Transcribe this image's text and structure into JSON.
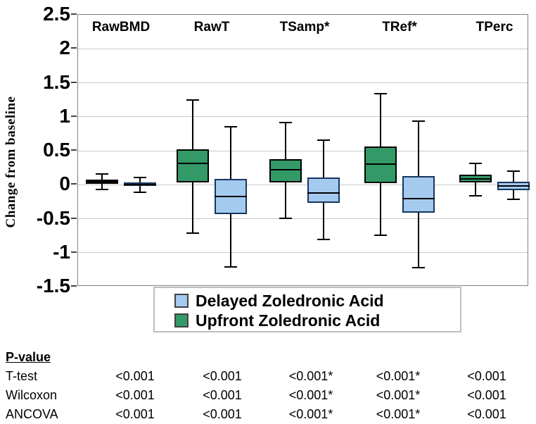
{
  "y_axis": {
    "title": "Change from baseline",
    "tick_labels": [
      "2.5",
      "2",
      "1.5",
      "1",
      "0.5",
      "0",
      "-0.5",
      "-1",
      "-1.5"
    ]
  },
  "legend": {
    "items": [
      {
        "label": "Delayed Zoledronic Acid",
        "color": "#A5CAF0",
        "border": "#17365D"
      },
      {
        "label": "Upfront Zoledronic Acid",
        "color": "#339966",
        "border": "#000000"
      }
    ]
  },
  "chart_data": {
    "type": "boxplot",
    "title": "",
    "xlabel": "",
    "ylabel": "Change from baseline",
    "ylim": [
      -1.5,
      2.5
    ],
    "ytick_step": 0.5,
    "grid": true,
    "legend_position": "bottom-center",
    "categories": [
      "RawBMD",
      "RawT",
      "TSamp*",
      "TRef*",
      "TPerc"
    ],
    "series": [
      {
        "name": "Upfront Zoledronic Acid",
        "fill": "#339966",
        "border": "#000000",
        "boxes": [
          {
            "whisker_low": -0.08,
            "q1": 0.0,
            "median": 0.03,
            "q3": 0.06,
            "whisker_high": 0.15
          },
          {
            "whisker_low": -0.72,
            "q1": 0.02,
            "median": 0.3,
            "q3": 0.51,
            "whisker_high": 1.24
          },
          {
            "whisker_low": -0.51,
            "q1": 0.02,
            "median": 0.21,
            "q3": 0.37,
            "whisker_high": 0.9
          },
          {
            "whisker_low": -0.75,
            "q1": 0.01,
            "median": 0.29,
            "q3": 0.55,
            "whisker_high": 1.33
          },
          {
            "whisker_low": -0.17,
            "q1": 0.02,
            "median": 0.07,
            "q3": 0.14,
            "whisker_high": 0.3
          }
        ]
      },
      {
        "name": "Delayed Zoledronic Acid",
        "fill": "#A5CAF0",
        "border": "#17365D",
        "boxes": [
          {
            "whisker_low": -0.12,
            "q1": -0.03,
            "median": -0.01,
            "q3": 0.02,
            "whisker_high": 0.1
          },
          {
            "whisker_low": -1.22,
            "q1": -0.44,
            "median": -0.18,
            "q3": 0.07,
            "whisker_high": 0.84
          },
          {
            "whisker_low": -0.82,
            "q1": -0.28,
            "median": -0.13,
            "q3": 0.1,
            "whisker_high": 0.64
          },
          {
            "whisker_low": -1.23,
            "q1": -0.42,
            "median": -0.21,
            "q3": 0.12,
            "whisker_high": 0.93
          },
          {
            "whisker_low": -0.23,
            "q1": -0.09,
            "median": -0.03,
            "q3": 0.03,
            "whisker_high": 0.19
          }
        ]
      }
    ]
  },
  "pvalue_table": {
    "header": "P-value",
    "rows": [
      {
        "label": "T-test",
        "values": [
          "<0.001",
          "<0.001",
          "<0.001*",
          "<0.001*",
          "<0.001"
        ]
      },
      {
        "label": "Wilcoxon",
        "values": [
          "<0.001",
          "<0.001",
          "<0.001*",
          "<0.001*",
          "<0.001"
        ]
      },
      {
        "label": "ANCOVA",
        "values": [
          "<0.001",
          "<0.001",
          "<0.001*",
          "<0.001*",
          "<0.001"
        ]
      }
    ]
  }
}
